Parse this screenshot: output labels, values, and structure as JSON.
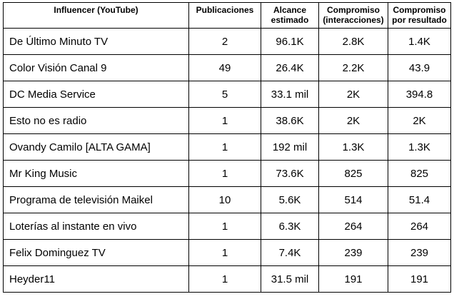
{
  "table": {
    "headers": [
      {
        "line1": "Influencer (YouTube)",
        "line2": ""
      },
      {
        "line1": "Publicaciones",
        "line2": ""
      },
      {
        "line1": "Alcance",
        "line2": "estimado"
      },
      {
        "line1": "Compromiso",
        "line2": "(interacciones)"
      },
      {
        "line1": "Compromiso",
        "line2": "por resultado"
      }
    ],
    "rows": [
      {
        "name": "De Último Minuto TV",
        "publicaciones": "2",
        "alcance": "96.1K",
        "interacciones": "2.8K",
        "por_resultado": "1.4K"
      },
      {
        "name": "Color Visión Canal 9",
        "publicaciones": "49",
        "alcance": "26.4K",
        "interacciones": "2.2K",
        "por_resultado": "43.9"
      },
      {
        "name": "DC Media Service",
        "publicaciones": "5",
        "alcance": "33.1 mil",
        "interacciones": "2K",
        "por_resultado": "394.8"
      },
      {
        "name": "Esto no es radio",
        "publicaciones": "1",
        "alcance": "38.6K",
        "interacciones": "2K",
        "por_resultado": "2K"
      },
      {
        "name": "Ovandy Camilo [ALTA GAMA]",
        "publicaciones": "1",
        "alcance": "192 mil",
        "interacciones": "1.3K",
        "por_resultado": "1.3K"
      },
      {
        "name": "Mr King Music",
        "publicaciones": "1",
        "alcance": "73.6K",
        "interacciones": "825",
        "por_resultado": "825"
      },
      {
        "name": "Programa de televisión Maikel",
        "publicaciones": "10",
        "alcance": "5.6K",
        "interacciones": "514",
        "por_resultado": "51.4"
      },
      {
        "name": "Loterías al instante en vivo",
        "publicaciones": "1",
        "alcance": "6.3K",
        "interacciones": "264",
        "por_resultado": "264"
      },
      {
        "name": "Felix Dominguez TV",
        "publicaciones": "1",
        "alcance": "7.4K",
        "interacciones": "239",
        "por_resultado": "239"
      },
      {
        "name": "Heyder11",
        "publicaciones": "1",
        "alcance": "31.5 mil",
        "interacciones": "191",
        "por_resultado": "191"
      }
    ]
  }
}
